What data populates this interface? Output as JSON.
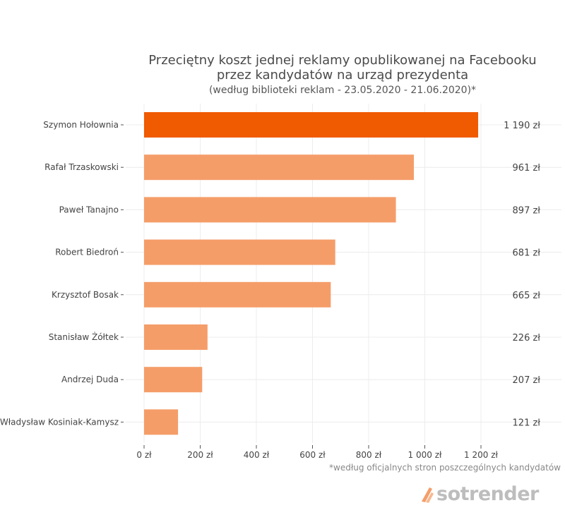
{
  "chart_data": {
    "type": "bar",
    "orientation": "horizontal",
    "title_lines": [
      "Przeciętny koszt jednej reklamy opublikowanej na Facebooku",
      "przez kandydatów na urząd prezydenta"
    ],
    "subtitle": "(według biblioteki reklam - 23.05.2020 - 21.06.2020)*",
    "categories": [
      "Szymon Hołownia",
      "Rafał Trzaskowski",
      "Paweł Tanajno",
      "Robert Biedroń",
      "Krzysztof Bosak",
      "Stanisław Żółtek",
      "Andrzej Duda",
      "Władysław Kosiniak-Kamysz"
    ],
    "values": [
      1190,
      961,
      897,
      681,
      665,
      226,
      207,
      121
    ],
    "value_labels": [
      "1 190 zł",
      "961 zł",
      "897 zł",
      "681 zł",
      "665 zł",
      "226 zł",
      "207 zł",
      "121 zł"
    ],
    "xticks": [
      0,
      200,
      400,
      600,
      800,
      1000,
      1200
    ],
    "xtick_labels": [
      "0 zł",
      "200 zł",
      "400 zł",
      "600 zł",
      "800 zł",
      "1 000 zł",
      "1 200 zł"
    ],
    "xlim": [
      0,
      1200
    ],
    "xlabel": "",
    "ylabel": "",
    "grid": true,
    "highlight_index": 0,
    "colors": {
      "highlight": "#f05a00",
      "default": "#f59d69",
      "grid": "#ececec",
      "tick": "#555555"
    }
  },
  "footnote": "*według oficjalnych stron poszczególnych kandydatów",
  "logo": {
    "text": "sotrender"
  }
}
